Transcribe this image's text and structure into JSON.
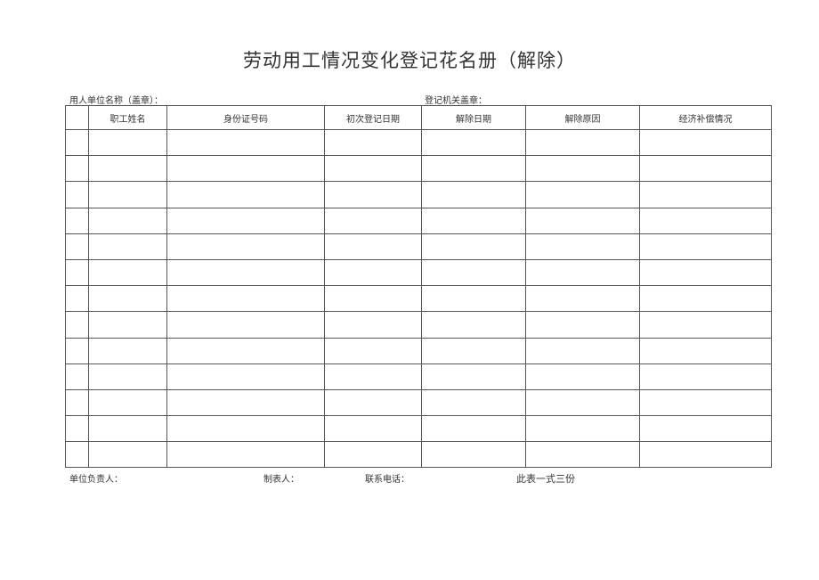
{
  "title": "劳动用工情况变化登记花名册（解除）",
  "employer_label": "用人单位名称（盖章）：",
  "registrar_label": "登记机关盖章：",
  "table": {
    "columns": [
      "",
      "职工姓名",
      "身份证号码",
      "初次登记日期",
      "解除日期",
      "解除原因",
      "经济补偿情况"
    ],
    "row_count": 13
  },
  "footer": {
    "unit_head": "单位负责人：",
    "preparer": "制表人：",
    "phone": "联系电话：",
    "copies": "此表一式三份"
  }
}
